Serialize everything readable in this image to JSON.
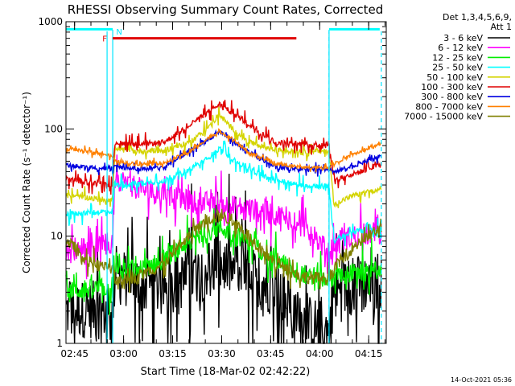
{
  "chart_data": {
    "type": "line",
    "title": "RHESSI Observing Summary Count Rates, Corrected",
    "xlabel": "Start Time (18-Mar-02 02:42:22)",
    "ylabel": "Corrected Count Rate (s⁻¹ detector⁻¹)",
    "y_scale": "log",
    "ylim": [
      1,
      1000
    ],
    "xlim_min_after_start": [
      0,
      98
    ],
    "y_ticks": [
      {
        "value": 1,
        "label": "1"
      },
      {
        "value": 10,
        "label": "10"
      },
      {
        "value": 100,
        "label": "100"
      },
      {
        "value": 1000,
        "label": "1000"
      }
    ],
    "x_ticks": [
      {
        "t": 2.63,
        "label": "02:45"
      },
      {
        "t": 17.63,
        "label": "03:00"
      },
      {
        "t": 32.63,
        "label": "03:15"
      },
      {
        "t": 47.63,
        "label": "03:30"
      },
      {
        "t": 62.63,
        "label": "03:45"
      },
      {
        "t": 77.63,
        "label": "04:00"
      },
      {
        "t": 92.63,
        "label": "04:15"
      }
    ],
    "legend_header": [
      "Det 1,3,4,5,6,9,",
      "Att 1"
    ],
    "legend_placement": "right",
    "timestamp": "14-Oct-2021 05:36",
    "attenuator_label": "F",
    "night_label": "N",
    "eclipse_periods_min": [
      [
        0,
        14.3
      ],
      [
        80.5,
        98
      ]
    ],
    "flag_bars": [
      {
        "name": "F",
        "start": 14.3,
        "end": 70.5,
        "level": 700,
        "color": "#e00000"
      },
      {
        "name": "N",
        "start": 0,
        "end": 14.3,
        "level": 850,
        "color": "#00ffff"
      },
      {
        "name": "N",
        "start": 80.5,
        "end": 96,
        "level": 850,
        "color": "#00ffff"
      }
    ],
    "series": [
      {
        "name": "3 - 6 keV",
        "color": "#000000",
        "t": [
          0,
          6,
          12,
          14.2,
          15,
          22,
          30,
          38,
          47,
          56,
          64,
          72,
          80.5,
          82,
          88,
          98
        ],
        "values": [
          2.0,
          2.1,
          2.0,
          1.6,
          4.5,
          3.5,
          3.3,
          4.2,
          5.5,
          4.3,
          3.3,
          1.6,
          1.3,
          3.0,
          3.5,
          4.0
        ]
      },
      {
        "name": "6 - 12 keV",
        "color": "#ff00ff",
        "t": [
          0,
          6,
          12,
          14.2,
          15,
          22,
          30,
          38,
          47,
          56,
          64,
          72,
          80.5,
          82,
          88,
          98
        ],
        "values": [
          7.5,
          7.8,
          8.0,
          8.0,
          35,
          28,
          24,
          21,
          20,
          18,
          16,
          13.5,
          7.0,
          8.5,
          10,
          11
        ]
      },
      {
        "name": "12 - 25 keV",
        "color": "#00ee00",
        "t": [
          0,
          6,
          12,
          14.2,
          15,
          22,
          30,
          38,
          47,
          56,
          64,
          72,
          80.5,
          82,
          88,
          98
        ],
        "values": [
          3.0,
          3.2,
          3.3,
          3.0,
          4.5,
          4.8,
          6.0,
          9.0,
          12,
          9.0,
          6.0,
          4.5,
          4.0,
          4.2,
          4.5,
          4.6
        ]
      },
      {
        "name": "25 - 50 keV",
        "color": "#00ffff",
        "t": [
          0,
          6,
          12,
          14.2,
          15,
          22,
          30,
          38,
          43,
          47,
          51,
          56,
          64,
          72,
          80.5,
          82,
          88,
          98
        ],
        "values": [
          16,
          16.5,
          17,
          17,
          30,
          31,
          33,
          42,
          52,
          66,
          52,
          42,
          33,
          30,
          29,
          9.0,
          11,
          12
        ]
      },
      {
        "name": "50 - 100 keV",
        "color": "#d4d400",
        "t": [
          0,
          6,
          12,
          14.2,
          15,
          22,
          30,
          38,
          43,
          47,
          51,
          56,
          64,
          72,
          80.5,
          82,
          88,
          98
        ],
        "values": [
          24,
          23,
          22,
          22,
          64,
          62,
          63,
          75,
          100,
          135,
          100,
          75,
          63,
          62,
          62,
          20,
          24,
          28
        ]
      },
      {
        "name": "100 - 300 keV",
        "color": "#e00000",
        "t": [
          0,
          6,
          12,
          14.2,
          15,
          22,
          30,
          38,
          43,
          47,
          51,
          56,
          64,
          72,
          80.5,
          82,
          88,
          98
        ],
        "values": [
          34,
          32,
          30,
          30,
          75,
          72,
          75,
          110,
          140,
          170,
          140,
          110,
          75,
          72,
          72,
          33,
          38,
          48
        ]
      },
      {
        "name": "300 - 800 keV",
        "color": "#0000e0",
        "t": [
          0,
          6,
          12,
          14.2,
          15,
          22,
          30,
          38,
          43,
          47,
          51,
          56,
          64,
          72,
          80.5,
          82,
          88,
          98
        ],
        "values": [
          46,
          44,
          43,
          42,
          45,
          42,
          44,
          62,
          78,
          95,
          78,
          60,
          44,
          42,
          42,
          40,
          45,
          58
        ]
      },
      {
        "name": "800 - 7000 keV",
        "color": "#ff8000",
        "t": [
          0,
          6,
          12,
          14.2,
          15,
          22,
          30,
          38,
          43,
          47,
          51,
          56,
          64,
          72,
          80.5,
          82,
          88,
          98
        ],
        "values": [
          65,
          62,
          58,
          55,
          50,
          47,
          48,
          62,
          80,
          95,
          80,
          60,
          47,
          44,
          44,
          48,
          58,
          75
        ]
      },
      {
        "name": "7000 - 15000 keV",
        "color": "#808000",
        "t": [
          0,
          6,
          12,
          14.2,
          15,
          22,
          30,
          38,
          43,
          47,
          51,
          56,
          64,
          72,
          80.5,
          82,
          88,
          98
        ],
        "values": [
          9.5,
          6.0,
          5.0,
          5.0,
          4.0,
          4.2,
          5.5,
          10,
          14,
          15.5,
          14,
          10,
          5.5,
          4.2,
          4.0,
          5.0,
          8.0,
          13
        ]
      }
    ]
  }
}
